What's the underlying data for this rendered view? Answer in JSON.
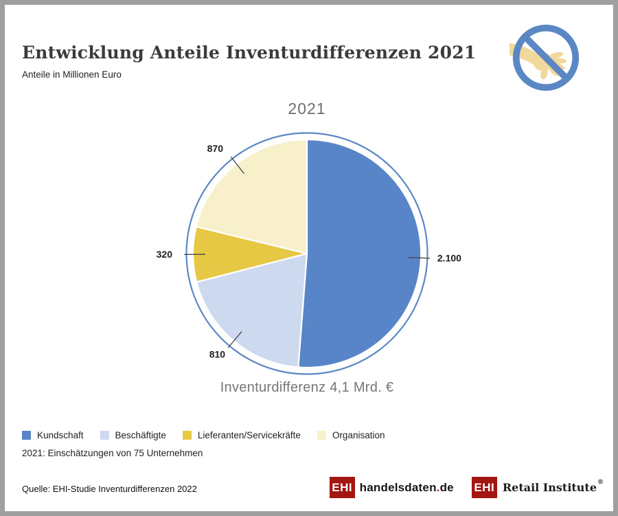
{
  "page": {
    "title": "Entwicklung Anteile Inventurdifferenzen 2021",
    "subtitle": "Anteile in Millionen Euro"
  },
  "chart_data": {
    "type": "pie",
    "title": "2021",
    "unit": "Millionen Euro",
    "caption": "Inventurdifferenz 4,1 Mrd. €",
    "total": 4100,
    "start_angle": "12 o'clock",
    "direction": "clockwise",
    "ring_color": "#5b87c5",
    "slices": [
      {
        "label": "Kundschaft",
        "value": 2100,
        "display": "2.100",
        "color": "#5885c7"
      },
      {
        "label": "Beschäftigte",
        "value": 810,
        "display": "810",
        "color": "#cdd9ee"
      },
      {
        "label": "Lieferanten/Servicekräfte",
        "value": 320,
        "display": "320",
        "color": "#e7c845"
      },
      {
        "label": "Organisation",
        "value": 870,
        "display": "870",
        "color": "#f8efcb"
      }
    ]
  },
  "note": "2021: Einschätzungen von 75 Unternehmen",
  "source": "Quelle: EHI-Studie Inventurdifferenzen 2022",
  "icon": {
    "meaning": "no-touching / anti-theft symbol",
    "ring_color": "#5b87c5",
    "hand_color": "#f1d89b"
  },
  "logos": {
    "handelsdaten": {
      "box": "EHI",
      "name": "handelsdaten",
      "dot": ".",
      "tld": "de"
    },
    "retail": {
      "box": "EHI",
      "name": "Retail Institute",
      "reg": "®"
    }
  }
}
